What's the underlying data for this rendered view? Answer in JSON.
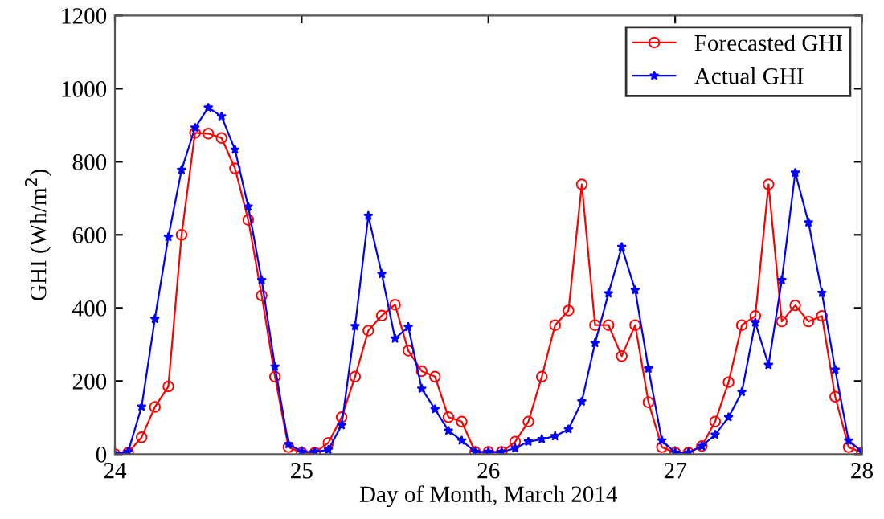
{
  "chart_data": {
    "type": "line",
    "xlabel": "Day of Month, March 2014",
    "ylabel": "GHI (Wh/m$^{2}$)",
    "x": [
      24,
      24.071,
      24.143,
      24.214,
      24.286,
      24.357,
      24.429,
      24.5,
      24.571,
      24.643,
      24.714,
      24.786,
      24.857,
      24.929,
      25,
      25.071,
      25.143,
      25.214,
      25.286,
      25.357,
      25.429,
      25.5,
      25.571,
      25.643,
      25.714,
      25.786,
      25.857,
      25.929,
      26,
      26.071,
      26.143,
      26.214,
      26.286,
      26.357,
      26.429,
      26.5,
      26.571,
      26.643,
      26.714,
      26.786,
      26.857,
      26.929,
      27,
      27.071,
      27.143,
      27.214,
      27.286,
      27.357,
      27.429,
      27.5,
      27.571,
      27.643,
      27.714,
      27.786,
      27.857,
      27.929,
      28
    ],
    "series": [
      {
        "name": "Forecasted GHI",
        "color": "#ff0000",
        "marker": "circle",
        "values": [
          0,
          4,
          46,
          129,
          185,
          600,
          879,
          877,
          865,
          782,
          641,
          434,
          212,
          19,
          4,
          4,
          31,
          101,
          212,
          338,
          379,
          409,
          283,
          227,
          212,
          101,
          89,
          6,
          6,
          6,
          34,
          89,
          212,
          353,
          393,
          738,
          353,
          353,
          268,
          353,
          142,
          19,
          4,
          4,
          22,
          89,
          197,
          353,
          378,
          738,
          363,
          407,
          363,
          378,
          157,
          19,
          4
        ]
      },
      {
        "name": "Actual GHI",
        "color": "#0000ff",
        "marker": "star",
        "values": [
          0,
          7,
          130,
          370,
          594,
          778,
          893,
          948,
          924,
          833,
          677,
          476,
          239,
          27,
          7,
          6,
          12,
          79,
          350,
          652,
          493,
          316,
          348,
          179,
          123,
          64,
          37,
          6,
          6,
          6,
          16,
          34,
          41,
          49,
          68,
          144,
          304,
          440,
          567,
          449,
          234,
          37,
          4,
          4,
          22,
          53,
          101,
          170,
          360,
          244,
          476,
          770,
          634,
          441,
          231,
          37,
          7
        ]
      }
    ],
    "xlim": [
      24,
      28
    ],
    "xticks": [
      24,
      25,
      26,
      27,
      28
    ],
    "ylim": [
      0,
      1200
    ],
    "yticks": [
      0,
      200,
      400,
      600,
      800,
      1000,
      1200
    ],
    "legend": "top right",
    "grid": false,
    "line_style": "solid"
  }
}
